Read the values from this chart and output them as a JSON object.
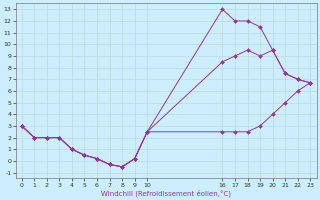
{
  "xlabel": "Windchill (Refroidissement éolien,°C)",
  "bg_color": "#cceeff",
  "grid_color": "#b8ddd8",
  "line_color": "#993399",
  "xlim": [
    -0.5,
    23.5
  ],
  "ylim": [
    -1.5,
    13.5
  ],
  "xtick_positions": [
    0,
    1,
    2,
    3,
    4,
    5,
    6,
    7,
    8,
    9,
    10,
    16,
    17,
    18,
    19,
    20,
    21,
    22,
    23
  ],
  "xtick_labels": [
    "0",
    "1",
    "2",
    "3",
    "4",
    "5",
    "6",
    "7",
    "8",
    "9",
    "10",
    "16",
    "17",
    "18",
    "19",
    "20",
    "21",
    "22",
    "23"
  ],
  "ytick_positions": [
    -1,
    0,
    1,
    2,
    3,
    4,
    5,
    6,
    7,
    8,
    9,
    10,
    11,
    12,
    13
  ],
  "ytick_labels": [
    "-1",
    "0",
    "1",
    "2",
    "3",
    "4",
    "5",
    "6",
    "7",
    "8",
    "9",
    "10",
    "11",
    "12",
    "13"
  ],
  "series": [
    {
      "x": [
        0,
        1,
        2,
        3,
        4,
        5,
        6,
        7,
        8,
        9,
        10,
        16,
        17,
        18,
        19,
        20,
        21,
        22,
        23
      ],
      "y": [
        3,
        2,
        2,
        2,
        1,
        0.5,
        0.2,
        -0.3,
        -0.5,
        0.2,
        2.5,
        13,
        12,
        12,
        11.5,
        9.5,
        7.5,
        7,
        6.7
      ]
    },
    {
      "x": [
        0,
        1,
        2,
        3,
        4,
        5,
        6,
        7,
        8,
        9,
        10,
        16,
        17,
        18,
        19,
        20,
        21,
        22,
        23
      ],
      "y": [
        3,
        2,
        2,
        2,
        1,
        0.5,
        0.2,
        -0.3,
        -0.5,
        0.2,
        2.5,
        8.5,
        9.0,
        9.5,
        9.0,
        9.5,
        7.5,
        7,
        6.7
      ]
    },
    {
      "x": [
        0,
        1,
        2,
        3,
        4,
        5,
        6,
        7,
        8,
        9,
        10,
        16,
        17,
        18,
        19,
        20,
        21,
        22,
        23
      ],
      "y": [
        3,
        2,
        2,
        2,
        1,
        0.5,
        0.2,
        -0.3,
        -0.5,
        0.2,
        2.5,
        2.5,
        2.5,
        2.5,
        3.0,
        4.0,
        5.0,
        6.0,
        6.7
      ]
    }
  ]
}
